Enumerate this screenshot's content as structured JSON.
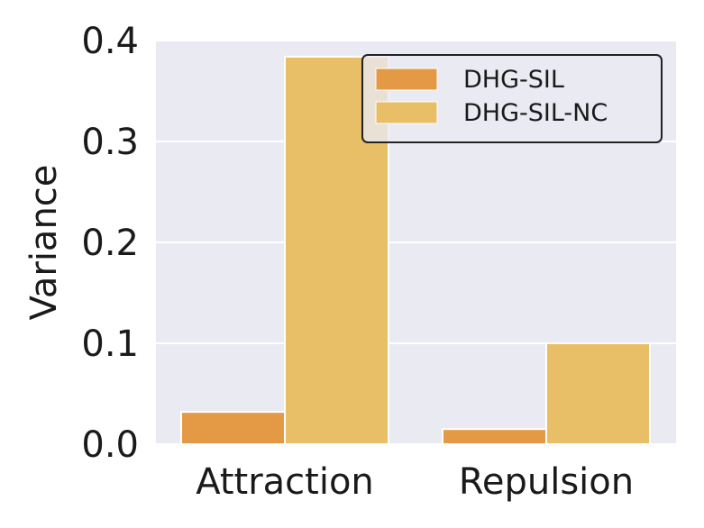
{
  "chart_data": {
    "type": "bar",
    "categories": [
      "Attraction",
      "Repulsion"
    ],
    "series": [
      {
        "name": "DHG-SIL",
        "values": [
          0.032,
          0.015
        ],
        "color": "#E49A44"
      },
      {
        "name": "DHG-SIL-NC",
        "values": [
          0.384,
          0.1
        ],
        "color": "#E8BE67"
      }
    ],
    "title": "",
    "xlabel": "",
    "ylabel": "Variance",
    "ylim": [
      0,
      0.4
    ],
    "yticks": [
      {
        "value": 0.0,
        "label": "0.0"
      },
      {
        "value": 0.1,
        "label": "0.1"
      },
      {
        "value": 0.2,
        "label": "0.2"
      },
      {
        "value": 0.3,
        "label": "0.3"
      },
      {
        "value": 0.4,
        "label": "0.4"
      }
    ],
    "grid": true,
    "legend_position": "top-right",
    "plot_background": "#EAEAF2",
    "grid_color": "#FFFFFF"
  }
}
